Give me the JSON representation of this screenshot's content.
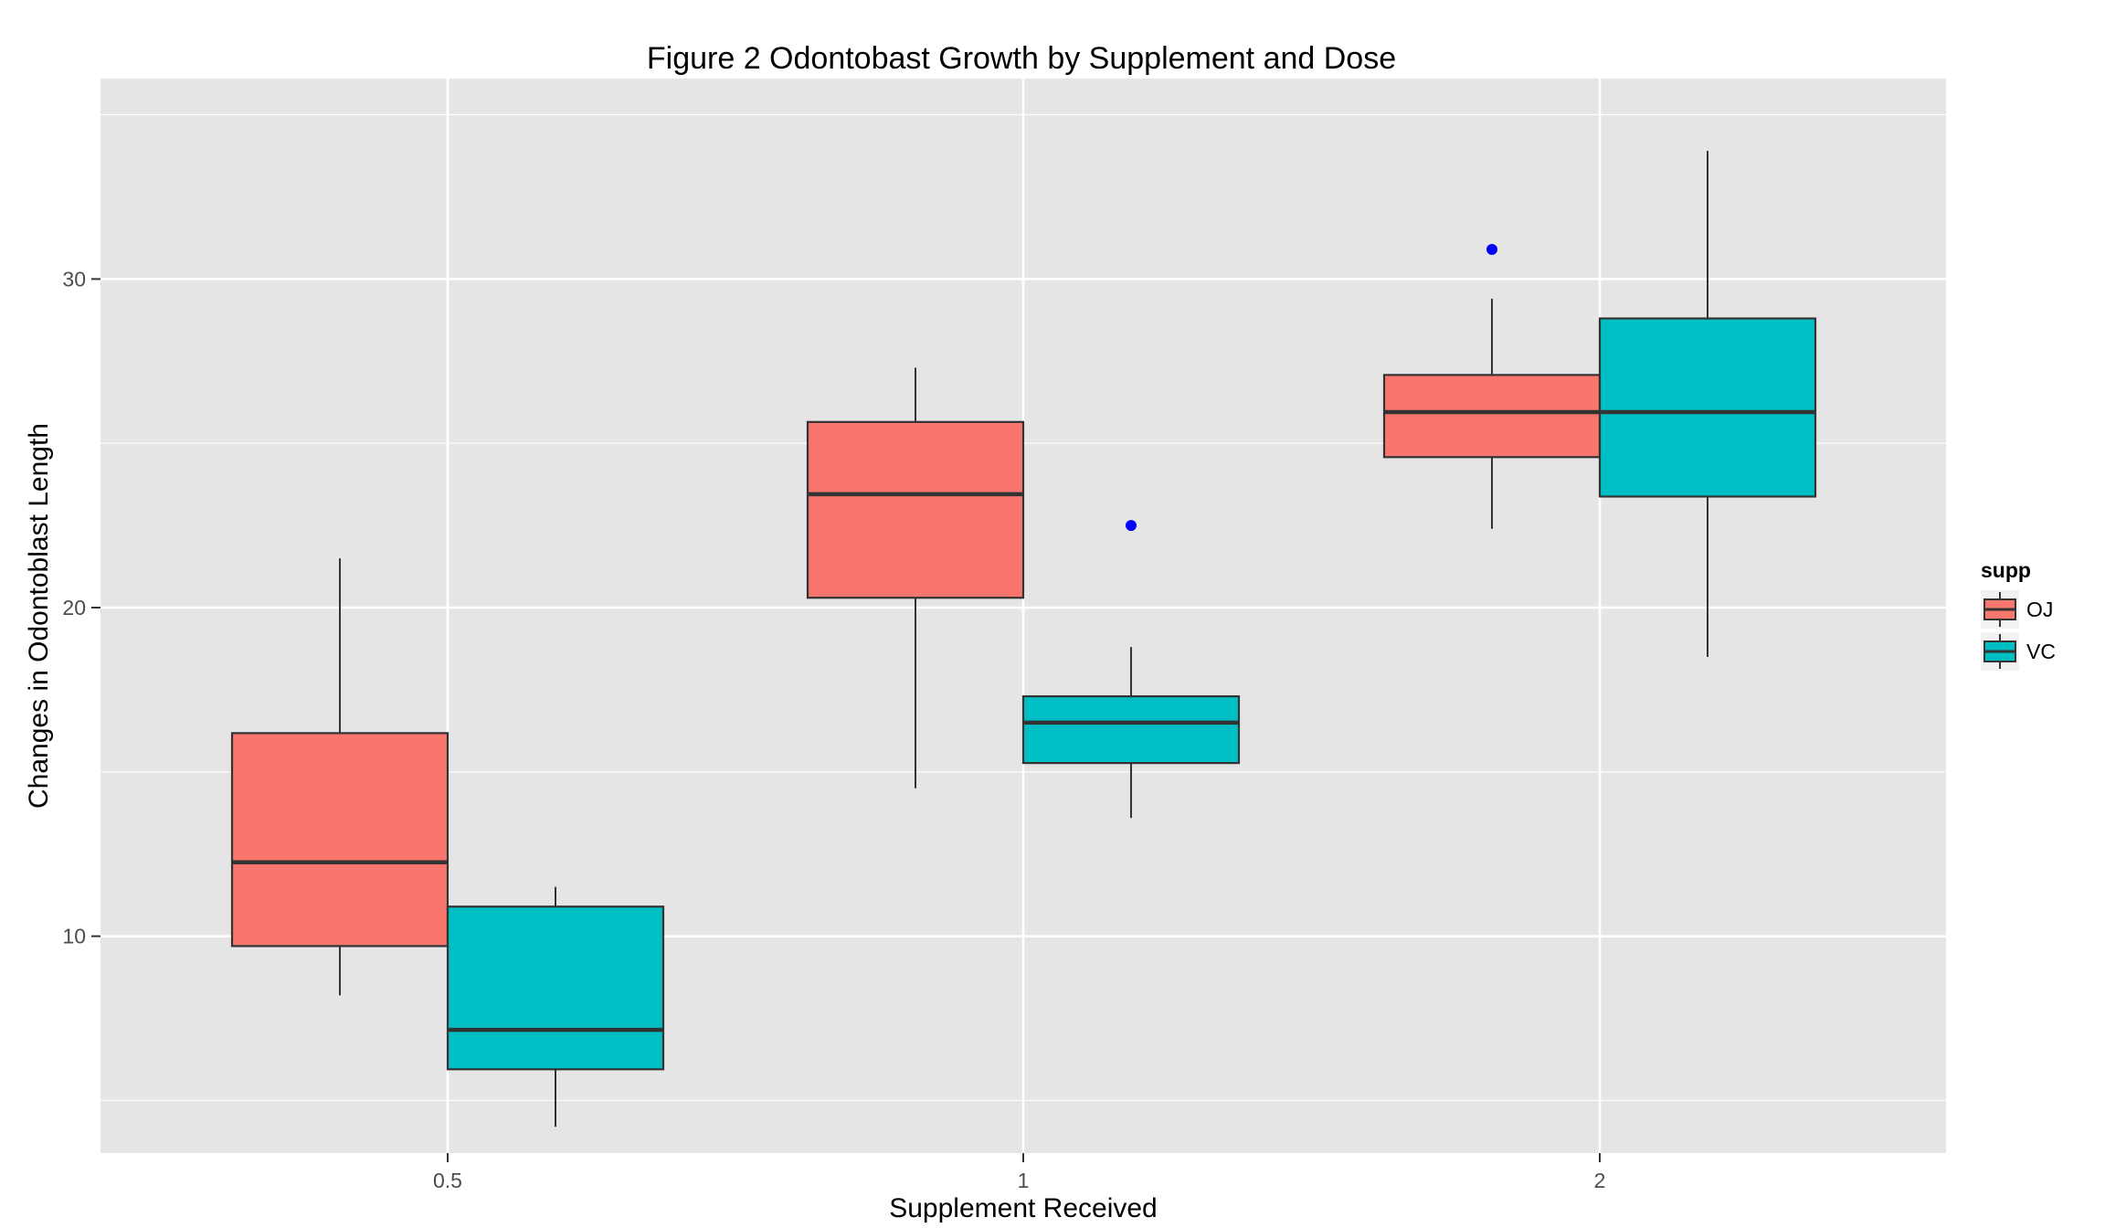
{
  "chart_data": {
    "type": "boxplot",
    "title": "Figure 2 Odontobast Growth by Supplement and Dose",
    "xlabel": "Supplement Received",
    "ylabel": "Changes in Odontoblast Length",
    "categories": [
      "0.5",
      "1",
      "2"
    ],
    "y_ticks": [
      10,
      20,
      30
    ],
    "ylim": [
      3.4,
      36.1
    ],
    "grid": true,
    "legend": {
      "title": "supp",
      "position": "right"
    },
    "series": [
      {
        "name": "OJ",
        "color": "#F8766D",
        "boxes": [
          {
            "category": "0.5",
            "min": 8.2,
            "q1": 9.7,
            "median": 12.25,
            "q3": 16.18,
            "max": 21.5,
            "outliers": []
          },
          {
            "category": "1",
            "min": 14.5,
            "q1": 20.3,
            "median": 23.45,
            "q3": 25.65,
            "max": 27.3,
            "outliers": []
          },
          {
            "category": "2",
            "min": 22.4,
            "q1": 24.58,
            "median": 25.95,
            "q3": 27.08,
            "max": 29.4,
            "outliers": [
              30.9
            ]
          }
        ]
      },
      {
        "name": "VC",
        "color": "#00BFC4",
        "boxes": [
          {
            "category": "0.5",
            "min": 4.2,
            "q1": 5.95,
            "median": 7.15,
            "q3": 10.9,
            "max": 11.5,
            "outliers": []
          },
          {
            "category": "1",
            "min": 13.6,
            "q1": 15.27,
            "median": 16.5,
            "q3": 17.3,
            "max": 18.8,
            "outliers": [
              22.5
            ]
          },
          {
            "category": "2",
            "min": 18.5,
            "q1": 23.38,
            "median": 25.95,
            "q3": 28.8,
            "max": 33.9,
            "outliers": []
          }
        ]
      }
    ],
    "outlier_color": "#0000FF",
    "panel_background": "#E5E5E5",
    "grid_color": "#FFFFFF"
  }
}
